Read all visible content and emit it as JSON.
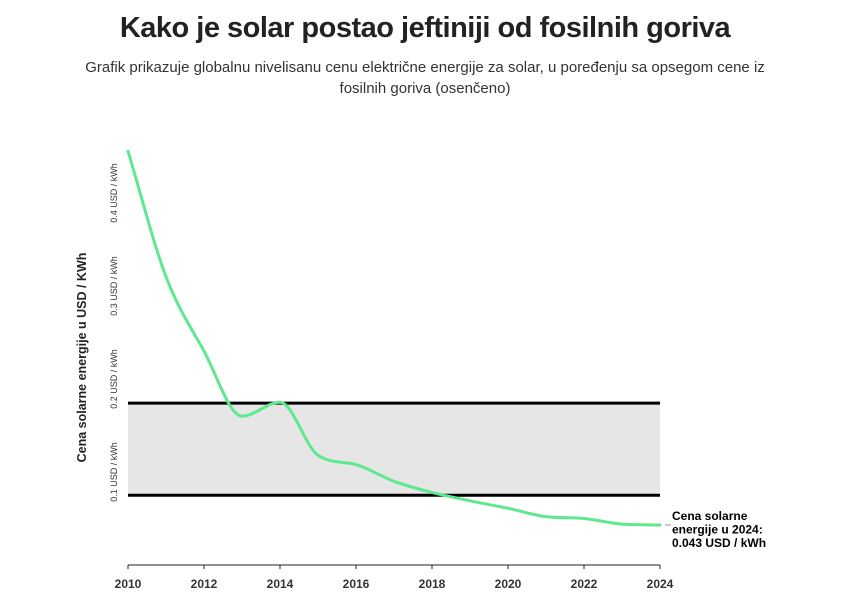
{
  "chart_data": {
    "type": "line",
    "title": "Kako je solar postao jeftiniji od fosilnih goriva",
    "subtitle_lines": [
      "Grafik prikazuje globalnu nivelisanu cenu električne energije za solar, u poređenju sa opsegom cene iz",
      "fosilnih goriva (osenčeno)"
    ],
    "ylabel": "Cena solarne energije u USD / KWh",
    "xlim": [
      2010,
      2024
    ],
    "ylim": [
      0,
      0.5
    ],
    "grid": false,
    "x_ticks": [
      "2010",
      "2012",
      "2014",
      "2016",
      "2018",
      "2020",
      "2022",
      "2024"
    ],
    "y_ticks": [
      {
        "value": 0.1,
        "label": "0.1 USD / kWh"
      },
      {
        "value": 0.2,
        "label": "0.2 USD / kWh"
      },
      {
        "value": 0.3,
        "label": "0.3 USD / kWh"
      },
      {
        "value": 0.4,
        "label": "0.4 USD / kWh"
      }
    ],
    "band": {
      "low": 0.075,
      "high": 0.174,
      "color": "#e6e6e6",
      "edge_color": "#000000"
    },
    "series": [
      {
        "color": "#5ee88f",
        "x": [
          2010,
          2011,
          2012,
          2013,
          2014,
          2015,
          2016,
          2017,
          2018,
          2019,
          2020,
          2021,
          2022,
          2023,
          2024
        ],
        "y": [
          0.445,
          0.31,
          0.23,
          0.16,
          0.175,
          0.118,
          0.108,
          0.09,
          0.078,
          0.069,
          0.061,
          0.052,
          0.05,
          0.044,
          0.043
        ]
      }
    ],
    "annotation": {
      "lines": [
        "Cena solarne",
        "energije u 2024:",
        "0.043 USD / kWh"
      ]
    }
  }
}
